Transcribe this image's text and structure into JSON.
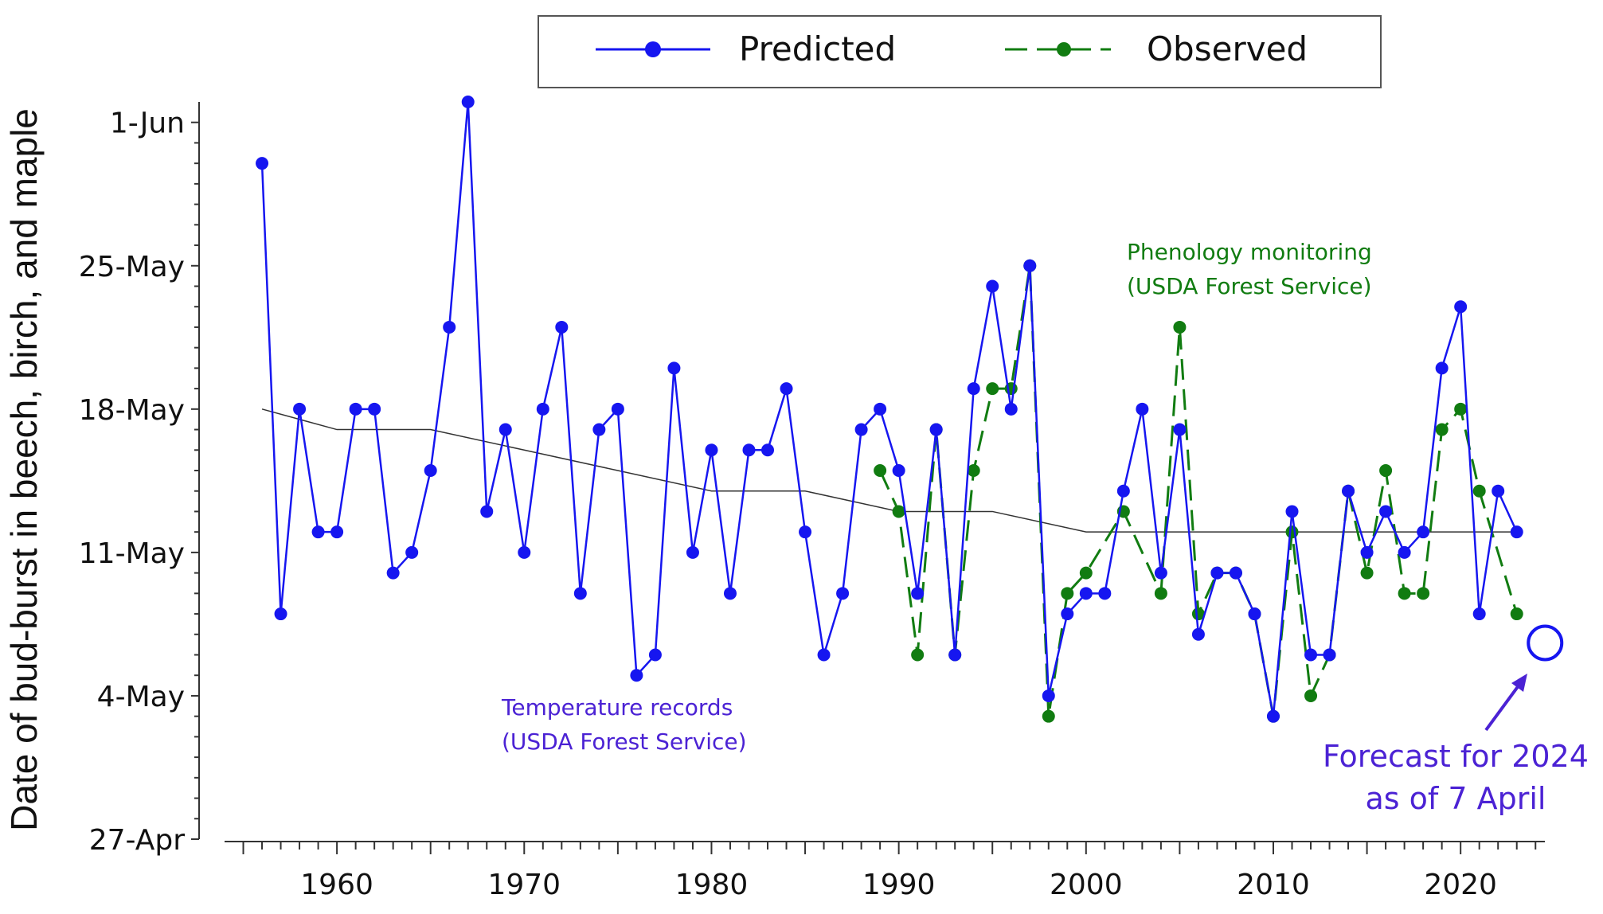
{
  "chart_data": {
    "type": "line",
    "ylabel": "Date of bud-burst in beech, birch, and maple",
    "x_ticks": [
      1960,
      1970,
      1980,
      1990,
      2000,
      2010,
      2020
    ],
    "y_ticks": [
      "27-Apr",
      "4-May",
      "11-May",
      "18-May",
      "25-May",
      "1-Jun"
    ],
    "xlim": [
      1954,
      2024.5
    ],
    "ylim": [
      "27-Apr",
      "2-Jun"
    ],
    "legend": {
      "position": "top",
      "entries": [
        "Predicted",
        "Observed"
      ]
    },
    "colors": {
      "predicted": "#1616f0",
      "observed": "#117c11",
      "trend": "#333333",
      "forecast": "#1616f0",
      "annotation": "#4b22d4"
    },
    "series": [
      {
        "name": "Predicted",
        "style": "solid",
        "x": [
          1956,
          1957,
          1958,
          1959,
          1960,
          1961,
          1962,
          1963,
          1964,
          1965,
          1966,
          1967,
          1968,
          1969,
          1970,
          1971,
          1972,
          1973,
          1974,
          1975,
          1976,
          1977,
          1978,
          1979,
          1980,
          1981,
          1982,
          1983,
          1984,
          1985,
          1986,
          1987,
          1988,
          1989,
          1990,
          1991,
          1992,
          1993,
          1994,
          1995,
          1996,
          1997,
          1998,
          1999,
          2000,
          2001,
          2002,
          2003,
          2004,
          2005,
          2006,
          2007,
          2008,
          2009,
          2010,
          2011,
          2012,
          2013,
          2014,
          2015,
          2016,
          2017,
          2018,
          2019,
          2020,
          2021,
          2022,
          2023
        ],
        "y": [
          "30-May",
          "8-May",
          "18-May",
          "12-May",
          "12-May",
          "18-May",
          "18-May",
          "10-May",
          "11-May",
          "15-May",
          "22-May",
          "2-Jun",
          "13-May",
          "17-May",
          "11-May",
          "18-May",
          "22-May",
          "9-May",
          "17-May",
          "18-May",
          "5-May",
          "6-May",
          "20-May",
          "11-May",
          "16-May",
          "9-May",
          "16-May",
          "16-May",
          "19-May",
          "12-May",
          "6-May",
          "9-May",
          "17-May",
          "18-May",
          "15-May",
          "9-May",
          "17-May",
          "6-May",
          "19-May",
          "24-May",
          "18-May",
          "25-May",
          "4-May",
          "8-May",
          "9-May",
          "9-May",
          "14-May",
          "18-May",
          "10-May",
          "17-May",
          "7-May",
          "10-May",
          "10-May",
          "8-May",
          "3-May",
          "13-May",
          "6-May",
          "6-May",
          "14-May",
          "11-May",
          "13-May",
          "11-May",
          "12-May",
          "20-May",
          "23-May",
          "8-May",
          "14-May",
          "12-May"
        ]
      },
      {
        "name": "Observed",
        "style": "dashed",
        "x": [
          1989,
          1990,
          1991,
          1992,
          1993,
          1994,
          1995,
          1996,
          1997,
          1998,
          1999,
          2000,
          2002,
          2004,
          2005,
          2006,
          2007,
          2008,
          2009,
          2010,
          2011,
          2012,
          2013,
          2014,
          2015,
          2016,
          2017,
          2018,
          2019,
          2020,
          2021,
          2023
        ],
        "y": [
          "15-May",
          "13-May",
          "6-May",
          "17-May",
          "6-May",
          "15-May",
          "19-May",
          "19-May",
          "25-May",
          "3-May",
          "9-May",
          "10-May",
          "13-May",
          "9-May",
          "22-May",
          "8-May",
          "10-May",
          "10-May",
          "8-May",
          "3-May",
          "12-May",
          "4-May",
          "6-May",
          "14-May",
          "10-May",
          "15-May",
          "9-May",
          "9-May",
          "17-May",
          "18-May",
          "14-May",
          "8-May"
        ]
      },
      {
        "name": "Trend",
        "style": "thin",
        "x": [
          1956,
          1960,
          1965,
          1970,
          1975,
          1980,
          1985,
          1990,
          1995,
          2000,
          2005,
          2010,
          2015,
          2020,
          2023
        ],
        "y": [
          "18-May",
          "17-May",
          "17-May",
          "16-May",
          "15-May",
          "14-May",
          "14-May",
          "13-May",
          "13-May",
          "12-May",
          "12-May",
          "12-May",
          "12-May",
          "12-May",
          "12-May"
        ]
      }
    ],
    "forecast": {
      "x": 2024,
      "y": "6-May",
      "label": [
        "Forecast for 2024",
        "as of 7 April"
      ]
    },
    "annotations": {
      "temperature": [
        "Temperature records",
        "(USDA Forest Service)"
      ],
      "phenology": [
        "Phenology monitoring",
        "(USDA Forest Service)"
      ]
    }
  }
}
